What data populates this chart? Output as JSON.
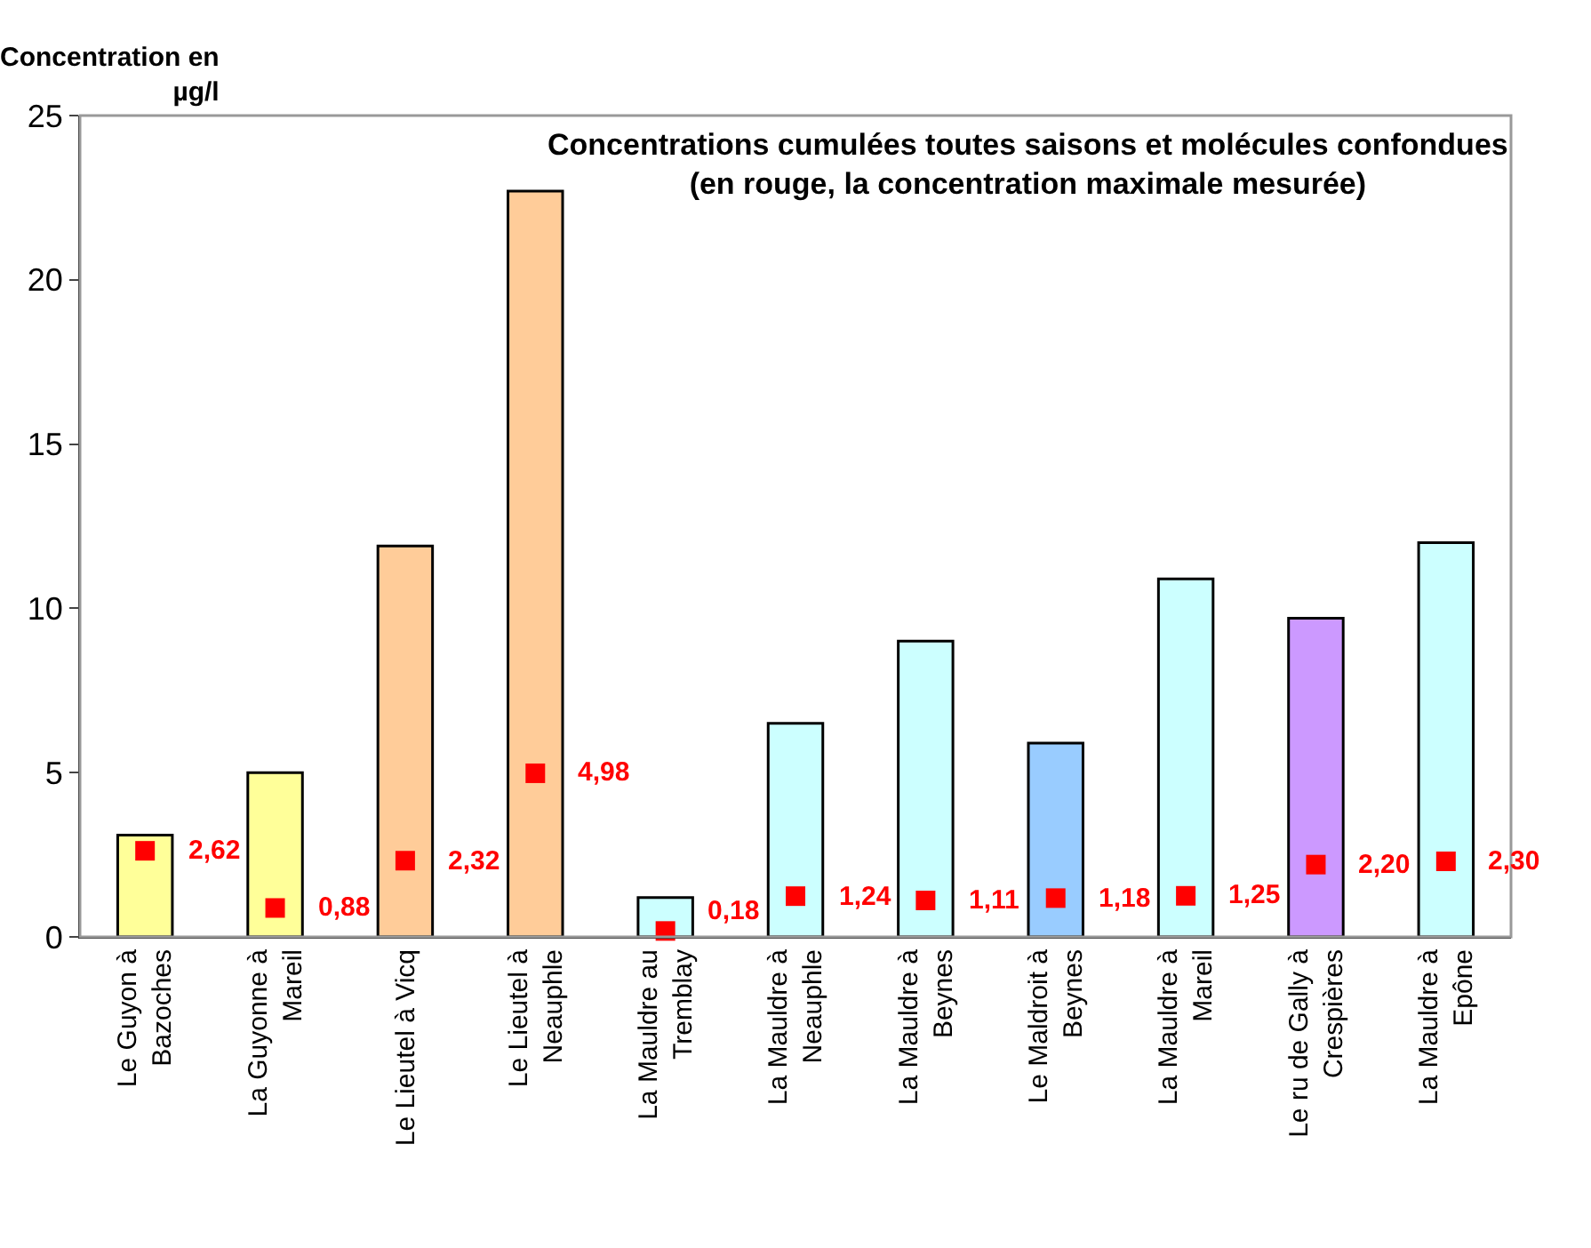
{
  "chart_data": {
    "type": "bar",
    "title": "Concentrations cumulées toutes saisons et molécules confondues\n(en rouge, la concentration maximale mesurée)",
    "ylabel": "Concentration en\nµg/l",
    "categories": [
      "Le Guyon à\nBazoches",
      "La Guyonne à\nMareil",
      "Le Lieutel à Vicq",
      "Le Lieutel à\nNeauphle",
      "La Mauldre au\nTremblay",
      "La Mauldre à\nNeauphle",
      "La Mauldre à\nBeynes",
      "Le Maldroit à\nBeynes",
      "La Mauldre à\nMareil",
      "Le ru de Gally à\nCrespières",
      "La Mauldre à\nEpône"
    ],
    "series": [
      {
        "colors": [
          "#ffff99",
          "#ffff99",
          "#ffcc99",
          "#ffcc99",
          "#ccffff",
          "#ccffff",
          "#ccffff",
          "#99ccff",
          "#ccffff",
          "#cc99ff",
          "#ccffff"
        ],
        "values": [
          3.1,
          5.0,
          11.9,
          22.7,
          1.2,
          6.5,
          9.0,
          5.9,
          10.9,
          9.7,
          12.0
        ]
      },
      {
        "type": "scatter",
        "color": "#ff0000",
        "marker": "square",
        "values": [
          2.62,
          0.88,
          2.32,
          4.98,
          0.18,
          1.24,
          1.11,
          1.18,
          1.25,
          2.2,
          2.3
        ],
        "value_labels": [
          "2,62",
          "0,88",
          "2,32",
          "4,98",
          "0,18",
          "1,24",
          "1,11",
          "1,18",
          "1,25",
          "2,20",
          "2,30"
        ]
      }
    ],
    "ylim": [
      0,
      25
    ],
    "yticks": [
      0,
      5,
      10,
      15,
      20,
      25
    ],
    "grid": false
  }
}
